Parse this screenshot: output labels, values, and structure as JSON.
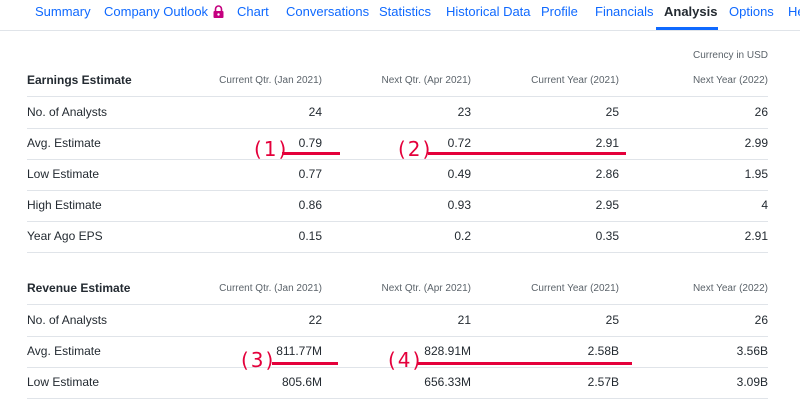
{
  "nav": {
    "tabs": [
      {
        "label": "Summary"
      },
      {
        "label": "Company Outlook"
      },
      {
        "label": "Chart"
      },
      {
        "label": "Conversations"
      },
      {
        "label": "Statistics"
      },
      {
        "label": "Historical Data"
      },
      {
        "label": "Profile"
      },
      {
        "label": "Financials"
      },
      {
        "label": "Analysis"
      },
      {
        "label": "Options"
      },
      {
        "label": "He"
      }
    ],
    "active_tab": "Analysis",
    "lock_icon": "lock-icon",
    "lock_color": "#c5007f"
  },
  "currency_note": "Currency in USD",
  "earnings": {
    "header": {
      "label": "Earnings Estimate",
      "cols": [
        "Current Qtr. (Jan 2021)",
        "Next Qtr. (Apr 2021)",
        "Current Year (2021)",
        "Next Year (2022)"
      ]
    },
    "rows": [
      {
        "label": "No. of Analysts",
        "values": [
          "24",
          "23",
          "25",
          "26"
        ]
      },
      {
        "label": "Avg. Estimate",
        "values": [
          "0.79",
          "0.72",
          "2.91",
          "2.99"
        ]
      },
      {
        "label": "Low Estimate",
        "values": [
          "0.77",
          "0.49",
          "2.86",
          "1.95"
        ]
      },
      {
        "label": "High Estimate",
        "values": [
          "0.86",
          "0.93",
          "2.95",
          "4"
        ]
      },
      {
        "label": "Year Ago EPS",
        "values": [
          "0.15",
          "0.2",
          "0.35",
          "2.91"
        ]
      }
    ]
  },
  "revenue": {
    "header": {
      "label": "Revenue Estimate",
      "cols": [
        "Current Qtr. (Jan 2021)",
        "Next Qtr. (Apr 2021)",
        "Current Year (2021)",
        "Next Year (2022)"
      ]
    },
    "rows": [
      {
        "label": "No. of Analysts",
        "values": [
          "22",
          "21",
          "25",
          "26"
        ]
      },
      {
        "label": "Avg. Estimate",
        "values": [
          "811.77M",
          "828.91M",
          "2.58B",
          "3.56B"
        ]
      },
      {
        "label": "Low Estimate",
        "values": [
          "805.6M",
          "656.33M",
          "2.57B",
          "3.09B"
        ]
      }
    ]
  },
  "annotations": [
    {
      "label": "(1)"
    },
    {
      "label": "(2)"
    },
    {
      "label": "(3)"
    },
    {
      "label": "(4)"
    }
  ],
  "colors": {
    "link": "#0f69ff",
    "accent": "#0f69ff",
    "annotation": "#e4003b",
    "text": "#232a31",
    "muted": "#5b636a"
  }
}
